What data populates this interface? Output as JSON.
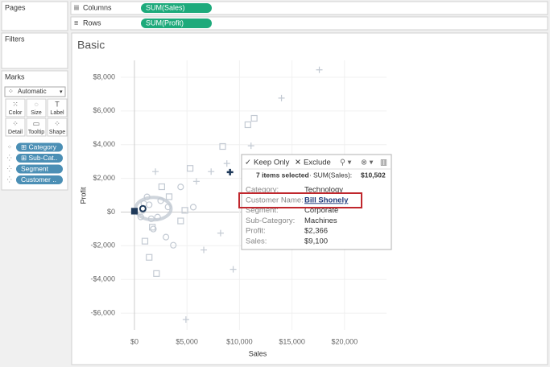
{
  "shelves": {
    "pages": "Pages",
    "columns": {
      "label": "Columns",
      "pill": "SUM(Sales)"
    },
    "rows": {
      "label": "Rows",
      "pill": "SUM(Profit)"
    }
  },
  "filters": "Filters",
  "marks": {
    "title": "Marks",
    "mark_type": "Automatic",
    "buttons": [
      "Color",
      "Size",
      "Label",
      "Detail",
      "Tooltip",
      "Shape"
    ],
    "pills": [
      "Category",
      "Sub-Cat..",
      "Segment",
      "Customer .."
    ]
  },
  "chart_data": {
    "type": "scatter",
    "title": "Basic",
    "x_label": "Sales",
    "y_label": "Profit",
    "xlim": [
      -1300,
      24000
    ],
    "ylim": [
      -7000,
      9000
    ],
    "grid": true,
    "xticks": [
      {
        "value": 0,
        "label": "$0"
      },
      {
        "value": 5000,
        "label": "$5,000"
      },
      {
        "value": 10000,
        "label": "$10,000"
      },
      {
        "value": 15000,
        "label": "$15,000"
      },
      {
        "value": 20000,
        "label": "$20,000"
      }
    ],
    "yticks": [
      {
        "value": -6000,
        "label": "-$6,000"
      },
      {
        "value": -4000,
        "label": "-$4,000"
      },
      {
        "value": -2000,
        "label": "-$2,000"
      },
      {
        "value": 0,
        "label": "$0"
      },
      {
        "value": 2000,
        "label": "$2,000"
      },
      {
        "value": 4000,
        "label": "$4,000"
      },
      {
        "value": 6000,
        "label": "$6,000"
      },
      {
        "value": 8000,
        "label": "$8,000"
      }
    ],
    "series": [
      {
        "shape": "plus",
        "color": "#c3cad3",
        "x": [
          17600,
          14000,
          11100,
          8800,
          7300,
          5900,
          4900,
          6600,
          8200,
          9400,
          2000
        ],
        "values": [
          8440,
          6760,
          3930,
          2880,
          2400,
          1820,
          -6380,
          -2250,
          -1250,
          -3400,
          2400
        ]
      },
      {
        "shape": "square",
        "color": "#c3cad3",
        "x": [
          10800,
          11400,
          8400,
          5300,
          4800,
          4400,
          2100,
          1400,
          1000,
          3300,
          2600,
          1700
        ],
        "values": [
          5180,
          5560,
          3890,
          2590,
          100,
          -530,
          -3650,
          -2690,
          -1730,
          910,
          1500,
          -900
        ]
      },
      {
        "shape": "circle",
        "color": "#c3cad3",
        "x": [
          3000,
          3700,
          5600,
          4400,
          2500,
          1800,
          600,
          1400,
          800,
          1200,
          2200,
          900,
          3200,
          1600
        ],
        "values": [
          -1490,
          -1970,
          290,
          1490,
          670,
          -1010,
          -290,
          430,
          100,
          900,
          -300,
          500,
          300,
          -400
        ]
      },
      {
        "shape": "plus",
        "color": "#1f3a5a",
        "x": [
          9100
        ],
        "values": [
          2366
        ]
      },
      {
        "shape": "circle",
        "color": "#1f3a5a",
        "x": [
          800
        ],
        "values": [
          200
        ]
      },
      {
        "shape": "square",
        "color": "#1f3a5a",
        "x": [
          0
        ],
        "values": [
          50
        ]
      }
    ]
  },
  "tooltip": {
    "actions": [
      "Keep Only",
      "Exclude"
    ],
    "summary": "7 items selected",
    "sum_label": "SUM(Sales):",
    "sum_value": "$10,502",
    "fields": [
      [
        "Category:",
        "Technology"
      ],
      [
        "Customer Name:",
        "Bill Shonely"
      ],
      [
        "Segment:",
        "Corporate"
      ],
      [
        "Sub-Category:",
        "Machines"
      ],
      [
        "Profit:",
        "$2,366"
      ],
      [
        "Sales:",
        "$9,100"
      ]
    ]
  }
}
